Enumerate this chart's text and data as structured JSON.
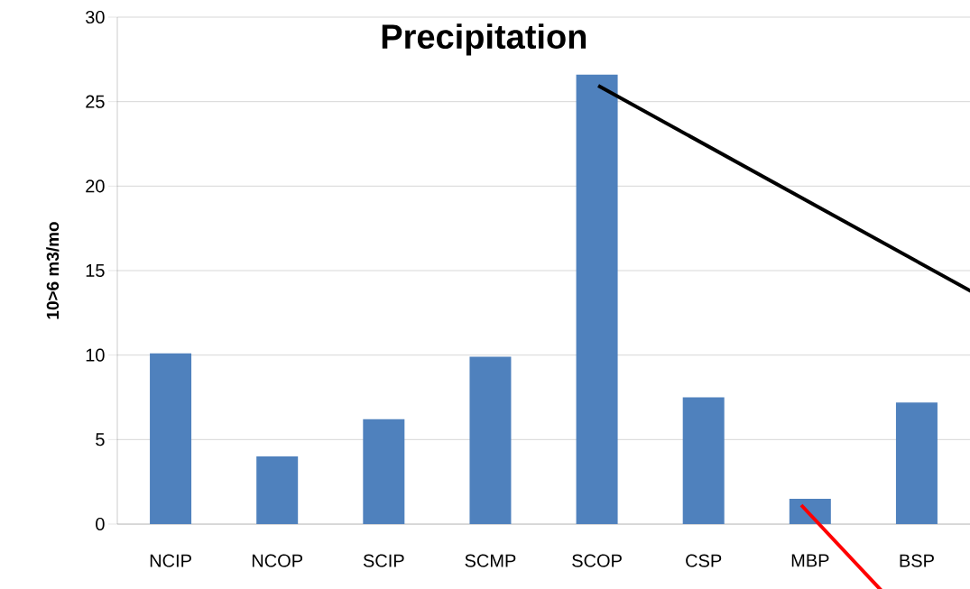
{
  "chart_data": {
    "type": "bar",
    "title": "Precipitation",
    "ylabel": "10>6 m3/mo",
    "categories": [
      "NCIP",
      "NCOP",
      "SCIP",
      "SCMP",
      "SCOP",
      "CSP",
      "MBP",
      "BSP"
    ],
    "values": [
      10.1,
      4.0,
      6.2,
      9.9,
      26.6,
      7.5,
      1.5,
      7.2
    ],
    "color": "#4f81bd",
    "ylim": [
      0,
      30
    ],
    "yticks": [
      0,
      5,
      10,
      15,
      20,
      25,
      30
    ],
    "grid": "y"
  }
}
